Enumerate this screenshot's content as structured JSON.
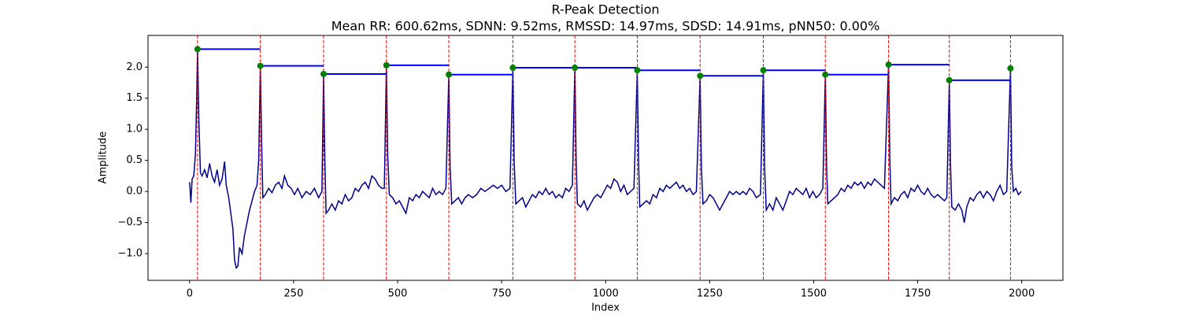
{
  "chart_data": {
    "type": "line",
    "title": "R-Peak Detection",
    "subtitle": "Mean RR: 600.62ms, SDNN: 9.52ms, RMSSD: 14.97ms, SDSD: 14.91ms, pNN50: 0.00%",
    "x_label": "Index",
    "y_label": "Amplitude",
    "xlim": [
      -100,
      2099
    ],
    "ylim": [
      -1.43,
      2.51
    ],
    "xticks": [
      0,
      250,
      500,
      750,
      1000,
      1250,
      1500,
      1750,
      2000
    ],
    "yticks": [
      {
        "value": -1,
        "label": "−1.0"
      },
      {
        "value": -0.5,
        "label": "−0.5"
      },
      {
        "value": 0,
        "label": "0.0"
      },
      0.5,
      {
        "value": 1,
        "label": "1.0"
      },
      1.5,
      {
        "value": 2,
        "label": "2.0"
      }
    ],
    "x": [
      0,
      3,
      6,
      10,
      14,
      17,
      19,
      22,
      26,
      30,
      36,
      42,
      48,
      54,
      60,
      66,
      72,
      78,
      84,
      88,
      94,
      100,
      104,
      108,
      112,
      116,
      120,
      126,
      132,
      138,
      144,
      150,
      156,
      162,
      166,
      170,
      173,
      176,
      182,
      190,
      198,
      206,
      214,
      222,
      228,
      236,
      244,
      252,
      260,
      270,
      280,
      290,
      300,
      310,
      318,
      322,
      325,
      328,
      334,
      342,
      350,
      358,
      366,
      374,
      382,
      390,
      398,
      406,
      414,
      422,
      430,
      438,
      446,
      454,
      462,
      468,
      473,
      476,
      480,
      488,
      496,
      504,
      512,
      520,
      528,
      536,
      544,
      552,
      560,
      568,
      576,
      584,
      592,
      600,
      608,
      616,
      623,
      626,
      630,
      638,
      646,
      654,
      662,
      670,
      680,
      690,
      700,
      710,
      720,
      730,
      740,
      750,
      760,
      770,
      777,
      780,
      784,
      792,
      800,
      808,
      816,
      824,
      832,
      840,
      848,
      856,
      864,
      872,
      880,
      888,
      896,
      904,
      912,
      920,
      926,
      929,
      932,
      940,
      948,
      956,
      964,
      972,
      980,
      988,
      996,
      1004,
      1012,
      1020,
      1028,
      1036,
      1044,
      1052,
      1060,
      1068,
      1076,
      1079,
      1082,
      1090,
      1098,
      1106,
      1114,
      1122,
      1130,
      1138,
      1146,
      1154,
      1162,
      1170,
      1178,
      1186,
      1194,
      1202,
      1210,
      1218,
      1227,
      1230,
      1234,
      1242,
      1250,
      1258,
      1266,
      1274,
      1282,
      1290,
      1298,
      1306,
      1314,
      1322,
      1330,
      1338,
      1346,
      1354,
      1362,
      1372,
      1379,
      1382,
      1386,
      1394,
      1402,
      1410,
      1418,
      1426,
      1434,
      1442,
      1450,
      1458,
      1466,
      1474,
      1482,
      1490,
      1498,
      1506,
      1514,
      1522,
      1528,
      1531,
      1534,
      1542,
      1550,
      1558,
      1566,
      1574,
      1582,
      1590,
      1598,
      1606,
      1614,
      1622,
      1630,
      1638,
      1646,
      1654,
      1662,
      1670,
      1680,
      1683,
      1686,
      1694,
      1702,
      1710,
      1718,
      1726,
      1734,
      1742,
      1750,
      1758,
      1766,
      1774,
      1782,
      1790,
      1798,
      1806,
      1814,
      1820,
      1826,
      1829,
      1832,
      1840,
      1848,
      1856,
      1862,
      1868,
      1876,
      1884,
      1892,
      1900,
      1908,
      1916,
      1924,
      1932,
      1940,
      1948,
      1956,
      1964,
      1973,
      1976,
      1980,
      1986,
      1992,
      1999
    ],
    "series": [
      {
        "color": "#00008b",
        "values": [
          0.15,
          -0.18,
          0.2,
          0.25,
          0.6,
          1.5,
          2.29,
          1.2,
          0.3,
          0.25,
          0.35,
          0.22,
          0.45,
          0.25,
          0.15,
          0.35,
          0.1,
          0.2,
          0.48,
          0.1,
          -0.1,
          -0.4,
          -0.6,
          -1.1,
          -1.23,
          -1.2,
          -0.9,
          -1.0,
          -0.7,
          -0.5,
          -0.3,
          -0.15,
          0.0,
          0.1,
          0.5,
          2.02,
          0.8,
          -0.1,
          -0.05,
          0.05,
          -0.02,
          0.1,
          0.15,
          0.05,
          0.25,
          0.1,
          0.05,
          -0.05,
          0.05,
          -0.1,
          0.0,
          -0.05,
          0.05,
          -0.1,
          0.0,
          1.89,
          0.5,
          -0.35,
          -0.3,
          -0.2,
          -0.3,
          -0.15,
          -0.2,
          -0.05,
          -0.15,
          -0.1,
          0.05,
          0.0,
          0.1,
          0.15,
          0.05,
          0.25,
          0.2,
          0.1,
          0.05,
          0.05,
          2.03,
          0.6,
          -0.05,
          -0.1,
          -0.2,
          -0.15,
          -0.25,
          -0.35,
          -0.1,
          -0.15,
          -0.05,
          -0.1,
          0.0,
          -0.05,
          -0.1,
          0.05,
          -0.05,
          0.0,
          -0.05,
          0.05,
          1.88,
          0.4,
          -0.2,
          -0.15,
          -0.1,
          -0.2,
          -0.1,
          -0.05,
          -0.1,
          -0.05,
          0.05,
          0.0,
          0.05,
          0.1,
          0.05,
          0.1,
          0.0,
          0.05,
          1.99,
          0.5,
          -0.2,
          -0.15,
          -0.1,
          -0.25,
          -0.15,
          -0.05,
          -0.1,
          0.0,
          -0.05,
          0.05,
          -0.05,
          0.0,
          -0.1,
          -0.05,
          -0.1,
          0.05,
          0.0,
          0.1,
          1.99,
          0.5,
          -0.2,
          -0.25,
          -0.15,
          -0.3,
          -0.2,
          -0.1,
          -0.05,
          -0.1,
          0.0,
          0.1,
          0.05,
          0.2,
          0.15,
          0.0,
          0.1,
          -0.05,
          0.0,
          0.05,
          1.95,
          0.5,
          -0.25,
          -0.2,
          -0.15,
          -0.2,
          -0.05,
          -0.1,
          0.05,
          0.0,
          0.1,
          0.05,
          0.1,
          0.15,
          0.05,
          0.1,
          0.0,
          0.05,
          -0.05,
          0.0,
          1.86,
          0.4,
          -0.2,
          -0.15,
          -0.05,
          -0.1,
          -0.2,
          -0.3,
          -0.2,
          -0.1,
          0.0,
          -0.05,
          0.0,
          -0.05,
          0.0,
          -0.05,
          0.05,
          0.0,
          -0.1,
          -0.05,
          1.95,
          0.4,
          -0.3,
          -0.2,
          -0.3,
          -0.1,
          -0.2,
          -0.3,
          -0.15,
          0.0,
          -0.05,
          0.05,
          0.0,
          -0.05,
          0.05,
          -0.1,
          0.0,
          -0.1,
          -0.05,
          0.05,
          1.88,
          0.4,
          -0.2,
          -0.15,
          -0.1,
          -0.05,
          0.05,
          0.0,
          0.1,
          0.05,
          0.15,
          0.1,
          0.15,
          0.05,
          0.15,
          0.1,
          0.2,
          0.15,
          0.1,
          0.05,
          2.04,
          0.5,
          -0.2,
          -0.1,
          -0.15,
          -0.05,
          0.0,
          -0.1,
          0.05,
          0.0,
          0.1,
          0.0,
          -0.05,
          0.05,
          -0.05,
          -0.1,
          -0.05,
          -0.1,
          -0.15,
          -0.1,
          1.79,
          0.4,
          -0.25,
          -0.3,
          -0.2,
          -0.3,
          -0.5,
          -0.25,
          -0.1,
          -0.15,
          -0.05,
          0.0,
          -0.1,
          0.0,
          -0.05,
          -0.15,
          0.0,
          0.1,
          -0.05,
          0.0,
          1.98,
          0.4,
          0.0,
          0.05,
          -0.05,
          0.0
        ]
      }
    ],
    "peaks": {
      "color": "green",
      "x": [
        19,
        170,
        322,
        473,
        623,
        777,
        926,
        1076,
        1227,
        1379,
        1528,
        1680,
        1826,
        1973
      ],
      "values": [
        2.29,
        2.02,
        1.89,
        2.03,
        1.88,
        1.99,
        1.99,
        1.95,
        1.86,
        1.95,
        1.88,
        2.04,
        1.79,
        1.98
      ]
    },
    "rr_line_color": "blue",
    "peak_line_color": "red"
  }
}
